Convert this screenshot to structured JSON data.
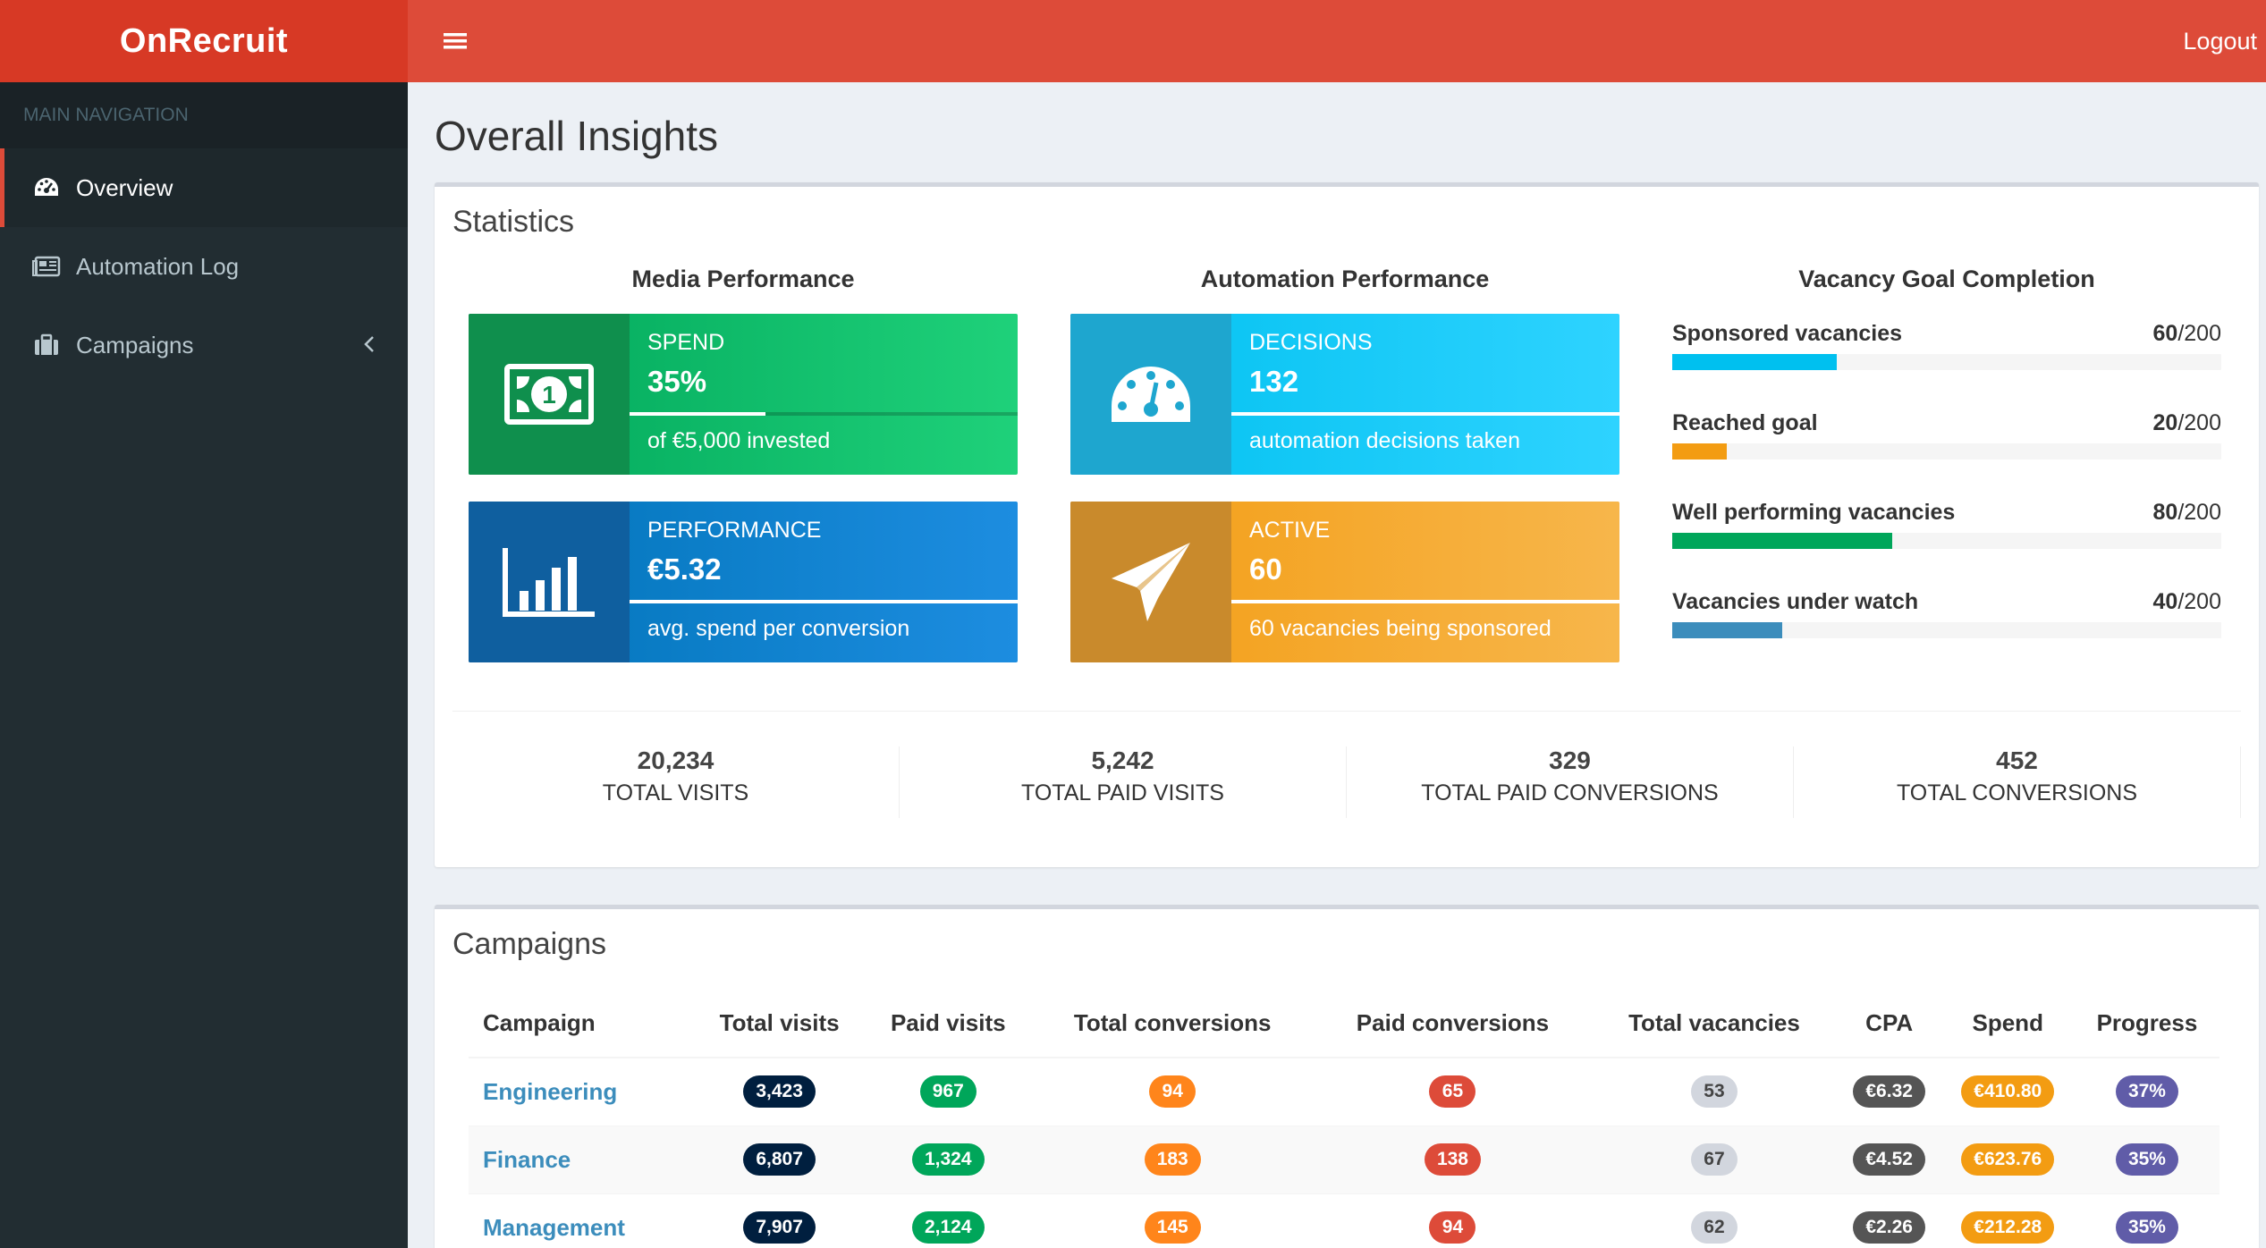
{
  "sidebar": {
    "logo": "OnRecruit",
    "header": "MAIN NAVIGATION",
    "items": [
      {
        "label": "Overview",
        "icon": "dashboard-icon"
      },
      {
        "label": "Automation Log",
        "icon": "newspaper-icon"
      },
      {
        "label": "Campaigns",
        "icon": "briefcase-icon"
      }
    ]
  },
  "topbar": {
    "logout": "Logout"
  },
  "page": {
    "title": "Overall Insights"
  },
  "statistics": {
    "title": "Statistics",
    "media": {
      "title": "Media Performance",
      "spend": {
        "label": "SPEND",
        "value": "35%",
        "desc": "of €5,000 invested",
        "progress": 0.35
      },
      "performance": {
        "label": "PERFORMANCE",
        "value": "€5.32",
        "desc": "avg. spend per conversion",
        "progress": 1.0
      }
    },
    "automation": {
      "title": "Automation Performance",
      "decisions": {
        "label": "DECISIONS",
        "value": "132",
        "desc": "automation decisions taken",
        "progress": 1.0
      },
      "active": {
        "label": "ACTIVE",
        "value": "60",
        "desc": "60 vacancies being sponsored",
        "progress": 1.0
      }
    },
    "goals": {
      "title": "Vacancy Goal Completion",
      "items": [
        {
          "name": "Sponsored vacancies",
          "value": "60",
          "total": "/200",
          "fraction": 0.3,
          "color": "#00c0ef"
        },
        {
          "name": "Reached goal",
          "value": "20",
          "total": "/200",
          "fraction": 0.1,
          "color": "#f39c12"
        },
        {
          "name": "Well performing vacancies",
          "value": "80",
          "total": "/200",
          "fraction": 0.4,
          "color": "#00a65a"
        },
        {
          "name": "Vacancies under watch",
          "value": "40",
          "total": "/200",
          "fraction": 0.2,
          "color": "#3c8dbc"
        }
      ]
    },
    "totals": [
      {
        "value": "20,234",
        "label": "TOTAL VISITS"
      },
      {
        "value": "5,242",
        "label": "TOTAL PAID VISITS"
      },
      {
        "value": "329",
        "label": "TOTAL PAID CONVERSIONS"
      },
      {
        "value": "452",
        "label": "TOTAL CONVERSIONS"
      }
    ]
  },
  "campaigns": {
    "title": "Campaigns",
    "headers": [
      "Campaign",
      "Total visits",
      "Paid visits",
      "Total conversions",
      "Paid conversions",
      "Total vacancies",
      "CPA",
      "Spend",
      "Progress"
    ],
    "rows": [
      {
        "name": "Engineering",
        "total_visits": "3,423",
        "paid_visits": "967",
        "total_conversions": "94",
        "paid_conversions": "65",
        "total_vacancies": "53",
        "cpa": "€6.32",
        "spend": "€410.80",
        "progress": "37%"
      },
      {
        "name": "Finance",
        "total_visits": "6,807",
        "paid_visits": "1,324",
        "total_conversions": "183",
        "paid_conversions": "138",
        "total_vacancies": "67",
        "cpa": "€4.52",
        "spend": "€623.76",
        "progress": "35%"
      },
      {
        "name": "Management",
        "total_visits": "7,907",
        "paid_visits": "2,124",
        "total_conversions": "145",
        "paid_conversions": "94",
        "total_vacancies": "62",
        "cpa": "€2.26",
        "spend": "€212.28",
        "progress": "35%"
      }
    ]
  }
}
